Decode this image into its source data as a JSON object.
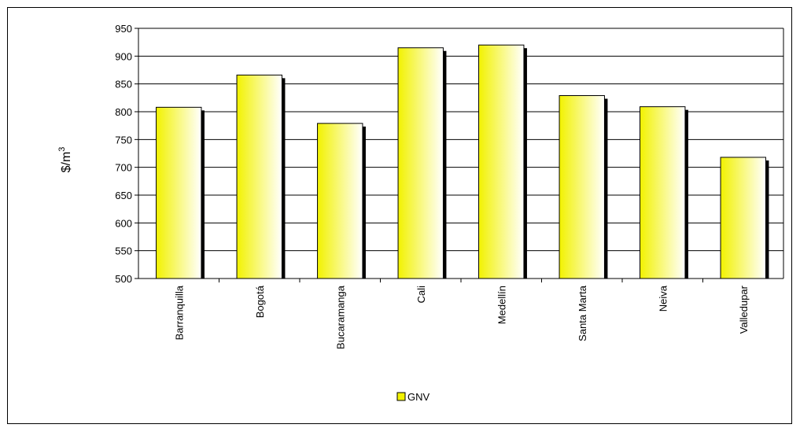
{
  "chart_data": {
    "type": "bar",
    "title": "",
    "xlabel": "",
    "ylabel_base": "$/m",
    "ylabel_sup": "3",
    "categories": [
      "Barranquilla",
      "Bogotá",
      "Bucaramanga",
      "Cali",
      "Medellín",
      "Santa Marta",
      "Neiva",
      "Valledupar"
    ],
    "series": [
      {
        "name": "GNV",
        "values": [
          808,
          866,
          779,
          915,
          920,
          829,
          809,
          718
        ]
      }
    ],
    "ylim": [
      500,
      950
    ],
    "yticks": [
      500,
      550,
      600,
      650,
      700,
      750,
      800,
      850,
      900,
      950
    ],
    "grid": true,
    "legend_position": "bottom",
    "colors": {
      "bar_light": "#ffffff",
      "bar_dark": "#f2f200",
      "shadow": "#000000",
      "grid": "#000000"
    }
  }
}
